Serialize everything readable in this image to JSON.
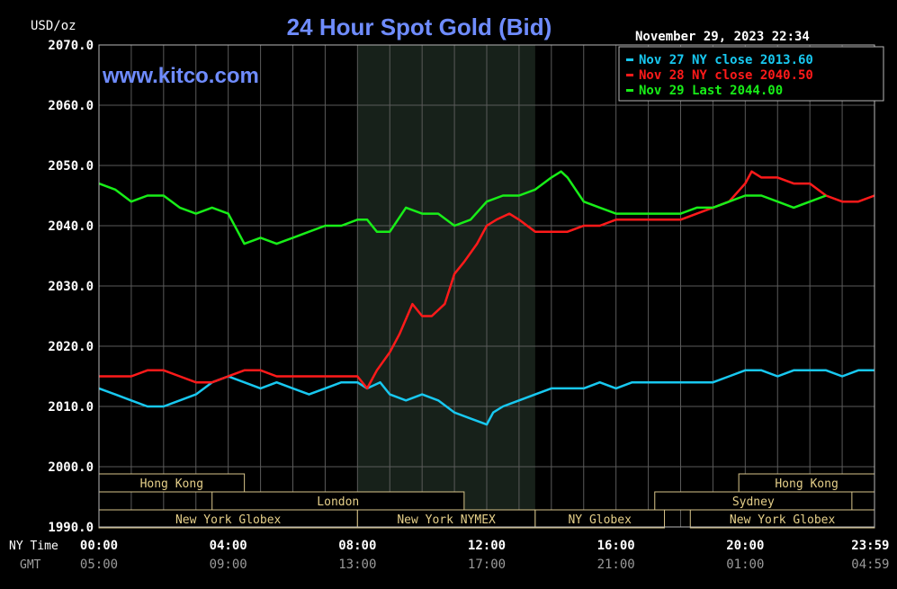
{
  "chart_data": {
    "type": "line",
    "title": "24 Hour Spot Gold (Bid)",
    "ylabel": "USD/oz",
    "watermark": "www.kitco.com",
    "timestamp": "November 29, 2023 22:34",
    "ylim": [
      1990,
      2070
    ],
    "y_ticks": [
      "2070.0",
      "2060.0",
      "2050.0",
      "2040.0",
      "2030.0",
      "2020.0",
      "2010.0",
      "2000.0",
      "1990.0"
    ],
    "x_row_labels": {
      "ny": "NY Time",
      "gmt": "GMT"
    },
    "x_ticks_ny": [
      "00:00",
      "04:00",
      "08:00",
      "12:00",
      "16:00",
      "20:00",
      "23:59"
    ],
    "x_ticks_gmt": [
      "05:00",
      "09:00",
      "13:00",
      "17:00",
      "21:00",
      "01:00",
      "04:59"
    ],
    "x_hours": [
      0,
      4,
      8,
      12,
      16,
      20,
      23.983
    ],
    "grid": true,
    "legend_position": "top-right",
    "legend": [
      {
        "label": "Nov 27 NY close 2013.60",
        "color": "#18c8f0"
      },
      {
        "label": "Nov 28 NY close 2040.50",
        "color": "#ff1a1a"
      },
      {
        "label": "Nov 29 Last 2044.00",
        "color": "#18ee18"
      }
    ],
    "series": [
      {
        "name": "Nov 27 NY close 2013.60",
        "color": "#18c8f0",
        "x": [
          0,
          0.5,
          1,
          1.5,
          2,
          2.5,
          3,
          3.5,
          4,
          4.5,
          5,
          5.5,
          6,
          6.5,
          7,
          7.5,
          8,
          8.3,
          8.7,
          9,
          9.5,
          10,
          10.5,
          11,
          11.5,
          12,
          12.2,
          12.5,
          13,
          13.5,
          14,
          14.5,
          15,
          15.5,
          16,
          16.5,
          17,
          17.5,
          18,
          18.5,
          19,
          19.5,
          20,
          20.5,
          21,
          21.5,
          22,
          22.5,
          23,
          23.5,
          24
        ],
        "values": [
          2013,
          2012,
          2011,
          2010,
          2010,
          2011,
          2012,
          2014,
          2015,
          2014,
          2013,
          2014,
          2013,
          2012,
          2013,
          2014,
          2014,
          2013,
          2014,
          2012,
          2011,
          2012,
          2011,
          2009,
          2008,
          2007,
          2009,
          2010,
          2011,
          2012,
          2013,
          2013,
          2013,
          2014,
          2013,
          2014,
          2014,
          2014,
          2014,
          2014,
          2014,
          2015,
          2016,
          2016,
          2015,
          2016,
          2016,
          2016,
          2015,
          2016,
          2016
        ]
      },
      {
        "name": "Nov 28 NY close 2040.50",
        "color": "#ff1a1a",
        "x": [
          0,
          0.5,
          1,
          1.5,
          2,
          2.5,
          3,
          3.5,
          4,
          4.5,
          5,
          5.5,
          6,
          6.5,
          7,
          7.5,
          8,
          8.3,
          8.6,
          9,
          9.3,
          9.7,
          10,
          10.3,
          10.7,
          11,
          11.3,
          11.7,
          12,
          12.3,
          12.7,
          13,
          13.5,
          14,
          14.5,
          15,
          15.5,
          16,
          16.5,
          17,
          17.5,
          18,
          18.5,
          19,
          19.5,
          20,
          20.2,
          20.5,
          21,
          21.5,
          22,
          22.5,
          23,
          23.5,
          24
        ],
        "values": [
          2015,
          2015,
          2015,
          2016,
          2016,
          2015,
          2014,
          2014,
          2015,
          2016,
          2016,
          2015,
          2015,
          2015,
          2015,
          2015,
          2015,
          2013,
          2016,
          2019,
          2022,
          2027,
          2025,
          2025,
          2027,
          2032,
          2034,
          2037,
          2040,
          2041,
          2042,
          2041,
          2039,
          2039,
          2039,
          2040,
          2040,
          2041,
          2041,
          2041,
          2041,
          2041,
          2042,
          2043,
          2044,
          2047,
          2049,
          2048,
          2048,
          2047,
          2047,
          2045,
          2044,
          2044,
          2045
        ]
      },
      {
        "name": "Nov 29 Last 2044.00",
        "color": "#18ee18",
        "x": [
          0,
          0.5,
          1,
          1.5,
          2,
          2.5,
          3,
          3.5,
          4,
          4.5,
          5,
          5.5,
          6,
          6.5,
          7,
          7.5,
          8,
          8.3,
          8.6,
          9,
          9.5,
          10,
          10.5,
          11,
          11.5,
          12,
          12.5,
          13,
          13.5,
          14,
          14.3,
          14.5,
          15,
          15.5,
          16,
          16.5,
          17,
          17.5,
          18,
          18.5,
          19,
          19.5,
          20,
          20.5,
          21,
          21.5,
          22,
          22.5
        ],
        "values": [
          2047,
          2046,
          2044,
          2045,
          2045,
          2043,
          2042,
          2043,
          2042,
          2037,
          2038,
          2037,
          2038,
          2039,
          2040,
          2040,
          2041,
          2041,
          2039,
          2039,
          2043,
          2042,
          2042,
          2040,
          2041,
          2044,
          2045,
          2045,
          2046,
          2048,
          2049,
          2048,
          2044,
          2043,
          2042,
          2042,
          2042,
          2042,
          2042,
          2043,
          2043,
          2044,
          2045,
          2045,
          2044,
          2043,
          2044,
          2045
        ]
      }
    ],
    "sessions": [
      {
        "name": "Hong Kong",
        "start": 0,
        "end": 4.5,
        "row": 0
      },
      {
        "name": "Hong Kong",
        "start": 19.8,
        "end": 24,
        "row": 0
      },
      {
        "name": "London",
        "start": 3.5,
        "end": 11.3,
        "row": 1
      },
      {
        "name": "Sydney",
        "start": 17.2,
        "end": 23.3,
        "row": 1
      },
      {
        "name": "New York Globex",
        "start": 0,
        "end": 8.0,
        "row": 2
      },
      {
        "name": "New York NYMEX",
        "start": 8.0,
        "end": 13.5,
        "row": 2
      },
      {
        "name": "NY Globex",
        "start": 13.5,
        "end": 17.5,
        "row": 2
      },
      {
        "name": "New York Globex",
        "start": 18.3,
        "end": 24,
        "row": 2
      }
    ],
    "nymex_shade": [
      8.0,
      13.5
    ]
  }
}
